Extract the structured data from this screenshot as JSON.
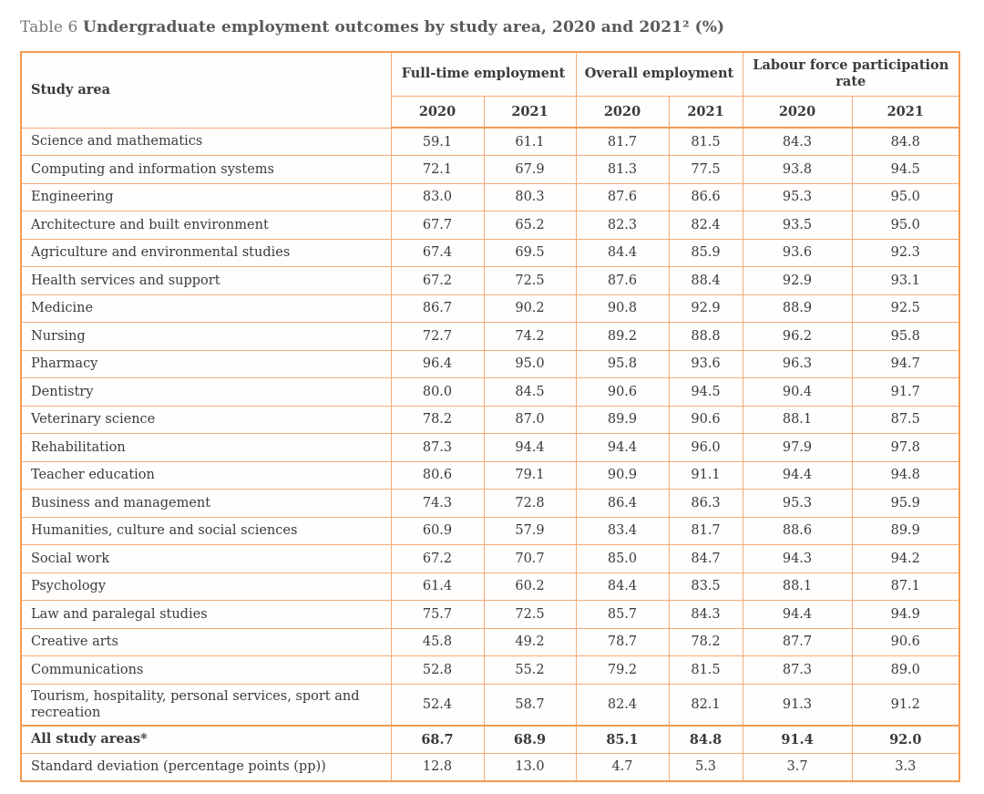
{
  "page": {
    "title_prefix": "Table 6 ",
    "title_main": "Undergraduate employment outcomes by study area, 2020 and 2021² (%)"
  },
  "table": {
    "header": {
      "study_area_label": "Study area",
      "groups": [
        {
          "label": "Full-time employment",
          "years": [
            "2020",
            "2021"
          ]
        },
        {
          "label": "Overall employment",
          "years": [
            "2020",
            "2021"
          ]
        },
        {
          "label": "Labour force participation rate",
          "years": [
            "2020",
            "2021"
          ]
        }
      ]
    },
    "rows": [
      {
        "label": "Science and mathematics",
        "values": [
          "59.1",
          "61.1",
          "81.7",
          "81.5",
          "84.3",
          "84.8"
        ]
      },
      {
        "label": "Computing and information systems",
        "values": [
          "72.1",
          "67.9",
          "81.3",
          "77.5",
          "93.8",
          "94.5"
        ]
      },
      {
        "label": "Engineering",
        "values": [
          "83.0",
          "80.3",
          "87.6",
          "86.6",
          "95.3",
          "95.0"
        ]
      },
      {
        "label": "Architecture and built environment",
        "values": [
          "67.7",
          "65.2",
          "82.3",
          "82.4",
          "93.5",
          "95.0"
        ]
      },
      {
        "label": "Agriculture and environmental studies",
        "values": [
          "67.4",
          "69.5",
          "84.4",
          "85.9",
          "93.6",
          "92.3"
        ]
      },
      {
        "label": "Health services and support",
        "values": [
          "67.2",
          "72.5",
          "87.6",
          "88.4",
          "92.9",
          "93.1"
        ]
      },
      {
        "label": "Medicine",
        "values": [
          "86.7",
          "90.2",
          "90.8",
          "92.9",
          "88.9",
          "92.5"
        ]
      },
      {
        "label": "Nursing",
        "values": [
          "72.7",
          "74.2",
          "89.2",
          "88.8",
          "96.2",
          "95.8"
        ]
      },
      {
        "label": "Pharmacy",
        "values": [
          "96.4",
          "95.0",
          "95.8",
          "93.6",
          "96.3",
          "94.7"
        ]
      },
      {
        "label": "Dentistry",
        "values": [
          "80.0",
          "84.5",
          "90.6",
          "94.5",
          "90.4",
          "91.7"
        ]
      },
      {
        "label": "Veterinary science",
        "values": [
          "78.2",
          "87.0",
          "89.9",
          "90.6",
          "88.1",
          "87.5"
        ]
      },
      {
        "label": "Rehabilitation",
        "values": [
          "87.3",
          "94.4",
          "94.4",
          "96.0",
          "97.9",
          "97.8"
        ]
      },
      {
        "label": "Teacher education",
        "values": [
          "80.6",
          "79.1",
          "90.9",
          "91.1",
          "94.4",
          "94.8"
        ]
      },
      {
        "label": "Business and management",
        "values": [
          "74.3",
          "72.8",
          "86.4",
          "86.3",
          "95.3",
          "95.9"
        ]
      },
      {
        "label": "Humanities, culture and social sciences",
        "values": [
          "60.9",
          "57.9",
          "83.4",
          "81.7",
          "88.6",
          "89.9"
        ]
      },
      {
        "label": "Social work",
        "values": [
          "67.2",
          "70.7",
          "85.0",
          "84.7",
          "94.3",
          "94.2"
        ]
      },
      {
        "label": "Psychology",
        "values": [
          "61.4",
          "60.2",
          "84.4",
          "83.5",
          "88.1",
          "87.1"
        ]
      },
      {
        "label": "Law and paralegal studies",
        "values": [
          "75.7",
          "72.5",
          "85.7",
          "84.3",
          "94.4",
          "94.9"
        ]
      },
      {
        "label": "Creative arts",
        "values": [
          "45.8",
          "49.2",
          "78.7",
          "78.2",
          "87.7",
          "90.6"
        ]
      },
      {
        "label": "Communications",
        "values": [
          "52.8",
          "55.2",
          "79.2",
          "81.5",
          "87.3",
          "89.0"
        ]
      },
      {
        "label": "Tourism, hospitality, personal services, sport and recreation",
        "values": [
          "52.4",
          "58.7",
          "82.4",
          "82.1",
          "91.3",
          "91.2"
        ]
      },
      {
        "label": "All study areas*",
        "emphasis": true,
        "values": [
          "68.7",
          "68.9",
          "85.1",
          "84.8",
          "91.4",
          "92.0"
        ]
      },
      {
        "label": "Standard deviation (percentage points (pp))",
        "values": [
          "12.8",
          "13.0",
          "4.7",
          "5.3",
          "3.7",
          "3.3"
        ]
      }
    ]
  },
  "colors": {
    "border_light": "#F5AA76",
    "border_strong": "#F09C55",
    "text": "#3A3A3C",
    "title": "#58595B"
  }
}
